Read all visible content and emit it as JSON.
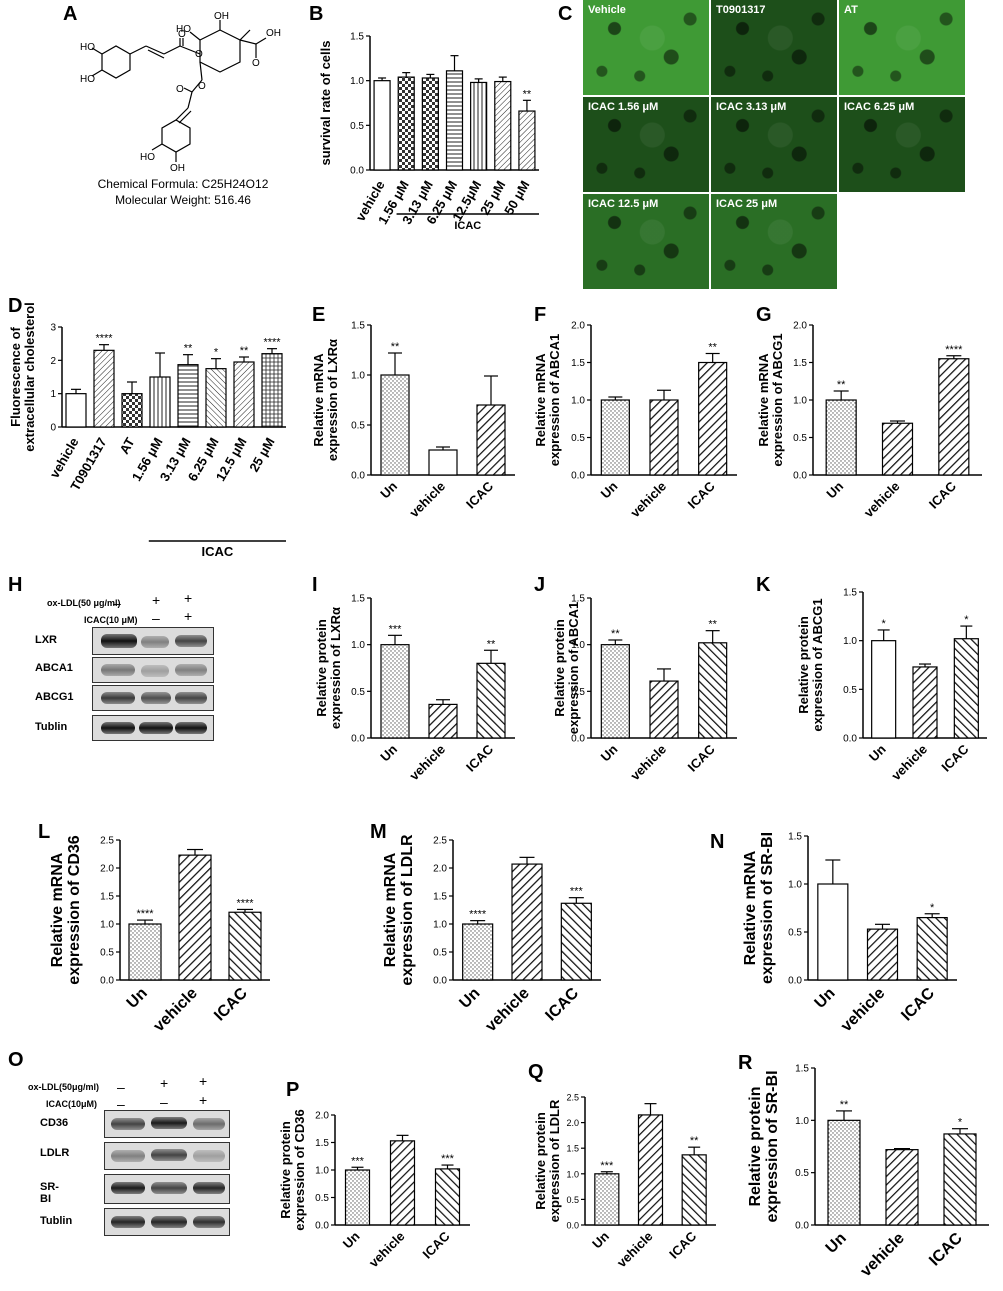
{
  "panels": {
    "A": "A",
    "B": "B",
    "C": "C",
    "D": "D",
    "E": "E",
    "F": "F",
    "G": "G",
    "H": "H",
    "I": "I",
    "J": "J",
    "K": "K",
    "L": "L",
    "M": "M",
    "N": "N",
    "O": "O",
    "P": "P",
    "Q": "Q",
    "R": "R"
  },
  "chemical": {
    "formula": "Chemical Formula: C25H24O12",
    "weight": "Molecular Weight: 516.46",
    "atoms": {
      "ho": "HO",
      "oh": "OH",
      "o": "O"
    }
  },
  "microscopy": {
    "tiles": [
      "Vehicle",
      "T0901317",
      "AT",
      "ICAC 1.56 μM",
      "ICAC 3.13 μM",
      "ICAC 6.25 μM",
      "ICAC 12.5 μM",
      "ICAC 25 μM"
    ],
    "colors": {
      "bright": "#3f9a35",
      "dim": "#1d4f1a",
      "mid": "#2a6e25"
    }
  },
  "western_H": {
    "treatments": [
      "ox-LDL(50 μg/ml)",
      "ICAC(10 μM)"
    ],
    "signs": [
      [
        "–",
        "+",
        "+"
      ],
      [
        "–",
        "–",
        "+"
      ]
    ],
    "proteins": [
      "LXR",
      "ABCA1",
      "ABCG1",
      "Tublin"
    ]
  },
  "western_O": {
    "treatments": [
      "ox-LDL(50μg/ml)",
      "ICAC(10μM)"
    ],
    "signs": [
      [
        "–",
        "+",
        "+"
      ],
      [
        "–",
        "–",
        "+"
      ]
    ],
    "proteins": [
      "CD36",
      "LDLR",
      "SR-BI",
      "Tublin"
    ]
  },
  "chart_data": [
    {
      "id": "B",
      "type": "bar",
      "title": "",
      "ylabel": "survival rate of cells",
      "categories": [
        "vehicle",
        "1.56 μM",
        "3.13 μM",
        "6.25 μM",
        "12.5μM",
        "25 μM",
        "50 μM"
      ],
      "values": [
        1.0,
        1.04,
        1.03,
        1.11,
        0.98,
        0.99,
        0.66
      ],
      "errors": [
        0.03,
        0.05,
        0.04,
        0.17,
        0.04,
        0.05,
        0.12
      ],
      "annotations": [
        "",
        "",
        "",
        "",
        "",
        "",
        "**"
      ],
      "ylim": [
        0,
        1.5
      ],
      "yticks": [
        "0.0",
        "0.5",
        "1.0",
        "1.5"
      ],
      "group_label": "ICAC"
    },
    {
      "id": "D",
      "type": "bar",
      "title": "",
      "ylabel": "Fluorescence of extracellular cholesterol",
      "categories": [
        "vehicle",
        "T0901317",
        "AT",
        "1.56 μM",
        "3.13 μM",
        "6.25 μM",
        "12.5 μM",
        "25 μM"
      ],
      "values": [
        1.0,
        2.3,
        1.0,
        1.5,
        1.87,
        1.75,
        1.95,
        2.2
      ],
      "errors": [
        0.13,
        0.17,
        0.35,
        0.72,
        0.3,
        0.3,
        0.15,
        0.15
      ],
      "annotations": [
        "",
        "****",
        "",
        "",
        "**",
        "*",
        "**",
        "****"
      ],
      "ylim": [
        0,
        3
      ],
      "yticks": [
        "0",
        "1",
        "2",
        "3"
      ],
      "group_label": "ICAC"
    },
    {
      "id": "E",
      "type": "bar",
      "title": "",
      "ylabel": "Relative mRNA expression of LXRα",
      "categories": [
        "Un",
        "vehicle",
        "ICAC"
      ],
      "values": [
        1.0,
        0.25,
        0.7
      ],
      "errors": [
        0.22,
        0.03,
        0.29
      ],
      "annotations": [
        "**",
        "",
        ""
      ],
      "ylim": [
        0,
        1.5
      ],
      "yticks": [
        "0.0",
        "0.5",
        "1.0",
        "1.5"
      ]
    },
    {
      "id": "F",
      "type": "bar",
      "title": "",
      "ylabel": "Relative mRNA expression of ABCA1",
      "categories": [
        "Un",
        "vehicle",
        "ICAC"
      ],
      "values": [
        1.0,
        1.0,
        1.5
      ],
      "errors": [
        0.04,
        0.13,
        0.12
      ],
      "annotations": [
        "",
        "",
        "**"
      ],
      "ylim": [
        0,
        2.0
      ],
      "yticks": [
        "0.0",
        "0.5",
        "1.0",
        "1.5",
        "2.0"
      ]
    },
    {
      "id": "G",
      "type": "bar",
      "title": "",
      "ylabel": "Relative mRNA expression of ABCG1",
      "categories": [
        "Un",
        "vehicle",
        "ICAC"
      ],
      "values": [
        1.0,
        0.69,
        1.55
      ],
      "errors": [
        0.12,
        0.03,
        0.04
      ],
      "annotations": [
        "**",
        "",
        "****"
      ],
      "ylim": [
        0,
        2.0
      ],
      "yticks": [
        "0.0",
        "0.5",
        "1.0",
        "1.5",
        "2.0"
      ]
    },
    {
      "id": "I",
      "type": "bar",
      "title": "",
      "ylabel": "Relative protein expression of LXRα",
      "categories": [
        "Un",
        "vehicle",
        "ICAC"
      ],
      "values": [
        1.0,
        0.36,
        0.8
      ],
      "errors": [
        0.1,
        0.05,
        0.14
      ],
      "annotations": [
        "***",
        "",
        "**"
      ],
      "ylim": [
        0,
        1.5
      ],
      "yticks": [
        "0.0",
        "0.5",
        "1.0",
        "1.5"
      ]
    },
    {
      "id": "J",
      "type": "bar",
      "title": "",
      "ylabel": "Relative protein expression of ABCA1",
      "categories": [
        "Un",
        "vehicle",
        "ICAC"
      ],
      "values": [
        1.0,
        0.61,
        1.02
      ],
      "errors": [
        0.05,
        0.13,
        0.13
      ],
      "annotations": [
        "**",
        "",
        "**"
      ],
      "ylim": [
        0,
        1.5
      ],
      "yticks": [
        "0.0",
        "0.5",
        "1.0",
        "1.5"
      ]
    },
    {
      "id": "K",
      "type": "bar",
      "title": "",
      "ylabel": "Relative protein expression of ABCG1",
      "categories": [
        "Un",
        "vehicle",
        "ICAC"
      ],
      "values": [
        1.0,
        0.73,
        1.02
      ],
      "errors": [
        0.11,
        0.03,
        0.13
      ],
      "annotations": [
        "*",
        "",
        "*"
      ],
      "ylim": [
        0,
        1.5
      ],
      "yticks": [
        "0.0",
        "0.5",
        "1.0",
        "1.5"
      ]
    },
    {
      "id": "L",
      "type": "bar",
      "title": "",
      "ylabel": "Relative mRNA expression of CD36",
      "categories": [
        "Un",
        "vehicle",
        "ICAC"
      ],
      "values": [
        1.0,
        2.23,
        1.21
      ],
      "errors": [
        0.07,
        0.1,
        0.05
      ],
      "annotations": [
        "****",
        "",
        "****"
      ],
      "ylim": [
        0,
        2.5
      ],
      "yticks": [
        "0.0",
        "0.5",
        "1.0",
        "1.5",
        "2.0",
        "2.5"
      ]
    },
    {
      "id": "M",
      "type": "bar",
      "title": "",
      "ylabel": "Relative mRNA expression of LDLR",
      "categories": [
        "Un",
        "vehicle",
        "ICAC"
      ],
      "values": [
        1.0,
        2.07,
        1.37
      ],
      "errors": [
        0.06,
        0.12,
        0.1
      ],
      "annotations": [
        "****",
        "",
        "***"
      ],
      "ylim": [
        0,
        2.5
      ],
      "yticks": [
        "0.0",
        "0.5",
        "1.0",
        "1.5",
        "2.0",
        "2.5"
      ]
    },
    {
      "id": "N",
      "type": "bar",
      "title": "",
      "ylabel": "Relative mRNA expression of SR-BI",
      "categories": [
        "Un",
        "vehicle",
        "ICAC"
      ],
      "values": [
        1.0,
        0.53,
        0.65
      ],
      "errors": [
        0.25,
        0.05,
        0.04
      ],
      "annotations": [
        "",
        "",
        "*"
      ],
      "ylim": [
        0,
        1.5
      ],
      "yticks": [
        "0.0",
        "0.5",
        "1.0",
        "1.5"
      ]
    },
    {
      "id": "P",
      "type": "bar",
      "title": "",
      "ylabel": "Relative protein expression of CD36",
      "categories": [
        "Un",
        "vehicle",
        "ICAC"
      ],
      "values": [
        1.0,
        1.53,
        1.02
      ],
      "errors": [
        0.05,
        0.1,
        0.07
      ],
      "annotations": [
        "***",
        "",
        "***"
      ],
      "ylim": [
        0,
        2.0
      ],
      "yticks": [
        "0.0",
        "0.5",
        "1.0",
        "1.5",
        "2.0"
      ]
    },
    {
      "id": "Q",
      "type": "bar",
      "title": "",
      "ylabel": "Relative protein expression of LDLR",
      "categories": [
        "Un",
        "vehicle",
        "ICAC"
      ],
      "values": [
        1.0,
        2.15,
        1.37
      ],
      "errors": [
        0.04,
        0.22,
        0.15
      ],
      "annotations": [
        "***",
        "",
        "**"
      ],
      "ylim": [
        0,
        2.5
      ],
      "yticks": [
        "0.0",
        "0.5",
        "1.0",
        "1.5",
        "2.0",
        "2.5"
      ]
    },
    {
      "id": "R",
      "type": "bar",
      "title": "",
      "ylabel": "Relative protein expression of SR-BI",
      "categories": [
        "Un",
        "vehicle",
        "ICAC"
      ],
      "values": [
        1.0,
        0.72,
        0.87
      ],
      "errors": [
        0.09,
        0.01,
        0.05
      ],
      "annotations": [
        "**",
        "",
        "*"
      ],
      "ylim": [
        0,
        1.5
      ],
      "yticks": [
        "0.0",
        "0.5",
        "1.0",
        "1.5"
      ]
    }
  ]
}
